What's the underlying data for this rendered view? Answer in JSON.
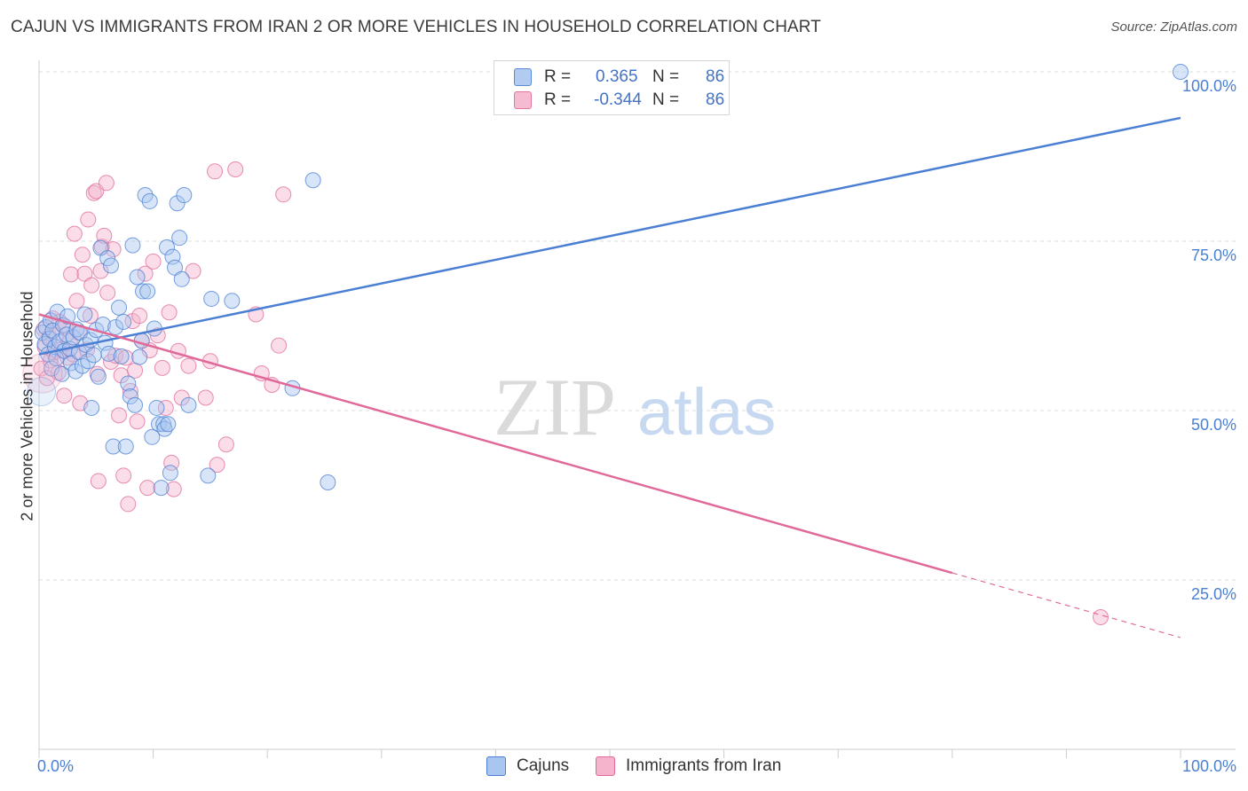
{
  "chart_data": {
    "type": "scatter",
    "title": "CAJUN VS IMMIGRANTS FROM IRAN 2 OR MORE VEHICLES IN HOUSEHOLD CORRELATION CHART",
    "source": "Source: ZipAtlas.com",
    "xlabel": "",
    "ylabel": "2 or more Vehicles in Household",
    "xlim": [
      0,
      100
    ],
    "ylim": [
      0,
      100
    ],
    "x_tick_labels": [
      "0.0%",
      "100.0%"
    ],
    "y_tick_labels": [
      "100.0%",
      "75.0%",
      "50.0%",
      "25.0%"
    ],
    "y_tick_values": [
      100,
      75,
      50,
      25
    ],
    "grid": true,
    "legend_position": "top-center",
    "watermark": {
      "zip": "ZIP",
      "atlas": "atlas"
    },
    "stats": [
      {
        "r_label": "R =",
        "r_value": "0.365",
        "n_label": "N =",
        "n_value": "86"
      },
      {
        "r_label": "R =",
        "r_value": "-0.344",
        "n_label": "N =",
        "n_value": "86"
      }
    ],
    "series": [
      {
        "name": "Cajuns",
        "color": "#4a7fd4",
        "fill": "#a9c6f0",
        "trend": {
          "x1": 0,
          "y1": 58.3,
          "x2": 100,
          "y2": 93.2,
          "dashed_from": null
        },
        "points": [
          [
            0.3,
            61.5
          ],
          [
            0.5,
            59.8
          ],
          [
            0.6,
            62.3
          ],
          [
            0.8,
            58.3
          ],
          [
            0.9,
            60.6
          ],
          [
            1.0,
            63.3
          ],
          [
            1.1,
            56.2
          ],
          [
            1.2,
            61.8
          ],
          [
            1.4,
            59.4
          ],
          [
            1.5,
            57.7
          ],
          [
            1.6,
            64.6
          ],
          [
            1.8,
            60.2
          ],
          [
            2.0,
            55.4
          ],
          [
            2.1,
            62.6
          ],
          [
            2.2,
            58.8
          ],
          [
            2.4,
            61.2
          ],
          [
            2.5,
            63.9
          ],
          [
            2.7,
            59.1
          ],
          [
            2.8,
            57.0
          ],
          [
            3.0,
            60.8
          ],
          [
            3.2,
            55.8
          ],
          [
            3.3,
            62.0
          ],
          [
            3.5,
            58.6
          ],
          [
            3.6,
            61.5
          ],
          [
            3.8,
            56.6
          ],
          [
            4.0,
            64.2
          ],
          [
            4.1,
            59.7
          ],
          [
            4.3,
            57.3
          ],
          [
            4.5,
            60.4
          ],
          [
            4.6,
            50.4
          ],
          [
            4.8,
            58.2
          ],
          [
            5.0,
            61.9
          ],
          [
            5.2,
            55.0
          ],
          [
            5.4,
            74.0
          ],
          [
            5.6,
            62.7
          ],
          [
            5.8,
            60.0
          ],
          [
            6.0,
            72.5
          ],
          [
            6.1,
            58.4
          ],
          [
            6.3,
            71.4
          ],
          [
            6.5,
            44.7
          ],
          [
            6.7,
            62.3
          ],
          [
            7.0,
            65.2
          ],
          [
            7.2,
            58.0
          ],
          [
            7.4,
            63.1
          ],
          [
            7.6,
            44.7
          ],
          [
            7.8,
            54.0
          ],
          [
            8.0,
            52.1
          ],
          [
            8.2,
            74.4
          ],
          [
            8.4,
            50.8
          ],
          [
            8.6,
            69.7
          ],
          [
            8.8,
            57.9
          ],
          [
            9.0,
            60.3
          ],
          [
            9.1,
            67.6
          ],
          [
            9.3,
            81.8
          ],
          [
            9.5,
            67.6
          ],
          [
            9.7,
            80.9
          ],
          [
            9.9,
            46.1
          ],
          [
            10.1,
            62.1
          ],
          [
            10.3,
            50.4
          ],
          [
            10.5,
            48.0
          ],
          [
            10.7,
            38.6
          ],
          [
            10.9,
            48.0
          ],
          [
            11.0,
            47.3
          ],
          [
            11.2,
            74.1
          ],
          [
            11.3,
            48.0
          ],
          [
            11.5,
            40.8
          ],
          [
            11.7,
            72.7
          ],
          [
            11.9,
            71.1
          ],
          [
            12.1,
            80.6
          ],
          [
            12.3,
            75.5
          ],
          [
            12.5,
            69.4
          ],
          [
            12.7,
            81.8
          ],
          [
            13.1,
            50.8
          ],
          [
            14.8,
            40.4
          ],
          [
            15.1,
            66.5
          ],
          [
            16.9,
            66.2
          ],
          [
            22.2,
            53.3
          ],
          [
            24.0,
            84.0
          ],
          [
            25.3,
            39.4
          ],
          [
            100,
            100
          ]
        ]
      },
      {
        "name": "Immigrants from Iran",
        "color": "#e0699a",
        "fill": "#f5b4cc",
        "trend": {
          "x1": 0,
          "y1": 64.2,
          "x2": 100,
          "y2": 16.5,
          "dashed_from": 80
        },
        "points": [
          [
            0.2,
            56.2
          ],
          [
            0.4,
            62.0
          ],
          [
            0.5,
            59.4
          ],
          [
            0.7,
            54.8
          ],
          [
            0.9,
            60.9
          ],
          [
            1.0,
            57.4
          ],
          [
            1.2,
            63.6
          ],
          [
            1.3,
            58.6
          ],
          [
            1.5,
            61.1
          ],
          [
            1.7,
            55.6
          ],
          [
            1.8,
            63.1
          ],
          [
            2.0,
            59.0
          ],
          [
            2.2,
            52.2
          ],
          [
            2.3,
            62.4
          ],
          [
            2.5,
            57.8
          ],
          [
            2.7,
            60.2
          ],
          [
            2.8,
            70.1
          ],
          [
            3.0,
            58.3
          ],
          [
            3.1,
            76.1
          ],
          [
            3.3,
            66.2
          ],
          [
            3.5,
            61.5
          ],
          [
            3.6,
            51.1
          ],
          [
            3.8,
            73.0
          ],
          [
            4.0,
            70.2
          ],
          [
            4.2,
            59.0
          ],
          [
            4.3,
            78.2
          ],
          [
            4.5,
            64.0
          ],
          [
            4.6,
            68.5
          ],
          [
            4.8,
            82.1
          ],
          [
            5.0,
            82.4
          ],
          [
            5.1,
            55.4
          ],
          [
            5.2,
            39.6
          ],
          [
            5.4,
            70.6
          ],
          [
            5.5,
            74.2
          ],
          [
            5.7,
            75.8
          ],
          [
            5.9,
            83.6
          ],
          [
            6.0,
            67.4
          ],
          [
            6.3,
            57.2
          ],
          [
            6.5,
            73.8
          ],
          [
            6.7,
            58.1
          ],
          [
            7.0,
            49.3
          ],
          [
            7.2,
            55.2
          ],
          [
            7.4,
            40.4
          ],
          [
            7.6,
            57.8
          ],
          [
            7.8,
            36.2
          ],
          [
            8.0,
            52.9
          ],
          [
            8.2,
            63.2
          ],
          [
            8.4,
            55.9
          ],
          [
            8.6,
            48.4
          ],
          [
            8.8,
            64.0
          ],
          [
            9.0,
            60.3
          ],
          [
            9.3,
            70.2
          ],
          [
            9.5,
            38.6
          ],
          [
            9.7,
            58.9
          ],
          [
            10.0,
            72.0
          ],
          [
            10.4,
            61.1
          ],
          [
            10.8,
            56.3
          ],
          [
            11.1,
            50.4
          ],
          [
            11.4,
            64.5
          ],
          [
            11.6,
            42.3
          ],
          [
            11.8,
            38.4
          ],
          [
            12.2,
            58.8
          ],
          [
            12.5,
            51.9
          ],
          [
            13.1,
            56.6
          ],
          [
            13.5,
            70.6
          ],
          [
            14.6,
            51.9
          ],
          [
            15.0,
            57.3
          ],
          [
            15.4,
            85.3
          ],
          [
            15.6,
            42.0
          ],
          [
            16.4,
            45.0
          ],
          [
            17.2,
            85.6
          ],
          [
            19.0,
            64.2
          ],
          [
            19.5,
            55.5
          ],
          [
            20.4,
            53.8
          ],
          [
            21.0,
            59.6
          ],
          [
            21.4,
            81.9
          ],
          [
            93.0,
            19.5
          ]
        ]
      }
    ]
  }
}
